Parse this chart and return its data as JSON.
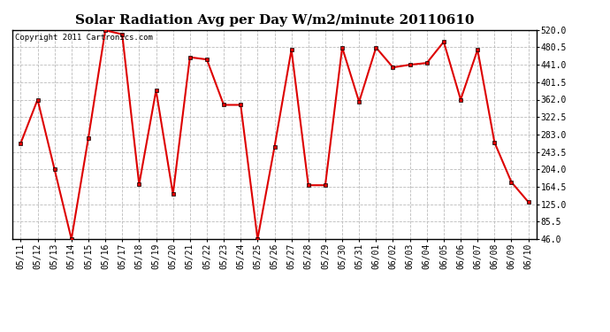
{
  "title": "Solar Radiation Avg per Day W/m2/minute 20110610",
  "copyright_text": "Copyright 2011 Cartronics.com",
  "dates": [
    "05/11",
    "05/12",
    "05/13",
    "05/14",
    "05/15",
    "05/16",
    "05/17",
    "05/18",
    "05/19",
    "05/20",
    "05/21",
    "05/22",
    "05/23",
    "05/24",
    "05/25",
    "05/26",
    "05/27",
    "05/28",
    "05/29",
    "05/30",
    "05/31",
    "06/01",
    "06/02",
    "06/03",
    "06/04",
    "06/05",
    "06/06",
    "06/07",
    "06/08",
    "06/09",
    "06/10"
  ],
  "values": [
    263,
    362,
    204,
    46,
    275,
    519,
    510,
    170,
    383,
    148,
    458,
    453,
    350,
    350,
    46,
    255,
    475,
    168,
    168,
    480,
    357,
    480,
    435,
    441,
    445,
    493,
    362,
    475,
    265,
    175,
    130
  ],
  "line_color": "#dd0000",
  "marker_color": "#000000",
  "bg_color": "#ffffff",
  "grid_color": "#bbbbbb",
  "yticks": [
    46.0,
    85.5,
    125.0,
    164.5,
    204.0,
    243.5,
    283.0,
    322.5,
    362.0,
    401.5,
    441.0,
    480.5,
    520.0
  ],
  "ylim": [
    46.0,
    520.0
  ],
  "title_fontsize": 11,
  "copyright_fontsize": 6.5,
  "tick_fontsize": 7,
  "figwidth": 6.9,
  "figheight": 3.75,
  "dpi": 100
}
